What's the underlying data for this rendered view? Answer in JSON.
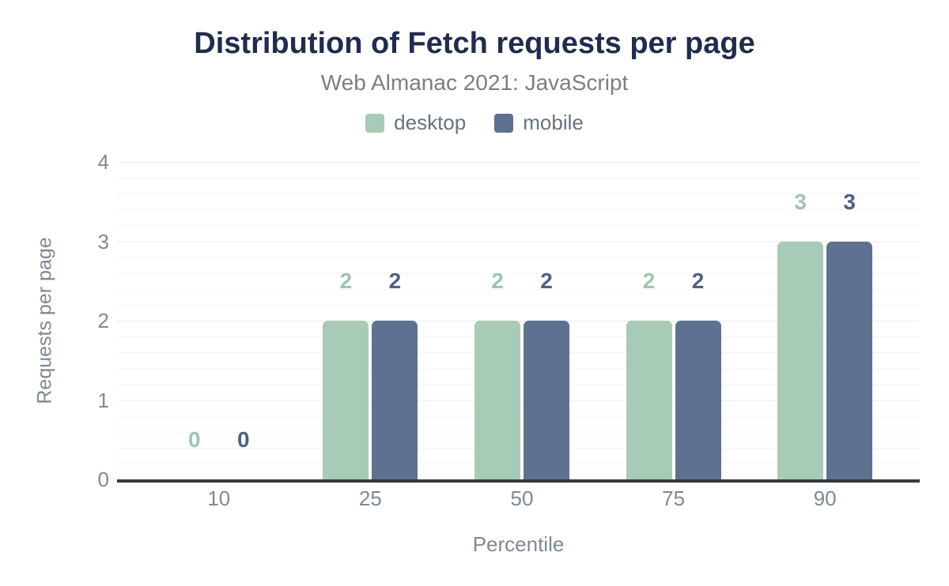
{
  "chart_data": {
    "type": "bar",
    "title": "Distribution of Fetch requests per page",
    "subtitle": "Web Almanac 2021: JavaScript",
    "categories": [
      "10",
      "25",
      "50",
      "75",
      "90"
    ],
    "series": [
      {
        "name": "desktop",
        "color": "#a8cbb7",
        "label_color": "#9ec5b0",
        "values": [
          0,
          2,
          2,
          2,
          3
        ]
      },
      {
        "name": "mobile",
        "color": "#5e7190",
        "label_color": "#4e6184",
        "values": [
          0,
          2,
          2,
          2,
          3
        ]
      }
    ],
    "xlabel": "Percentile",
    "ylabel": "Requests per page",
    "ylim": [
      0,
      4
    ],
    "yticks": [
      0,
      1,
      2,
      3,
      4
    ],
    "grid": {
      "major_step": 1,
      "minor_step": 0.2,
      "vertical_lines": false
    },
    "legend_position": "top-center",
    "colors": {
      "title": "#202c4e",
      "subtitle": "#7a7f84",
      "legend_text": "#68727c",
      "axis_text": "#7f8893",
      "axis_line": "#363a40",
      "grid_major": "#e9ebee",
      "grid_minor": "#f2f3f5",
      "background": "#ffffff"
    }
  }
}
